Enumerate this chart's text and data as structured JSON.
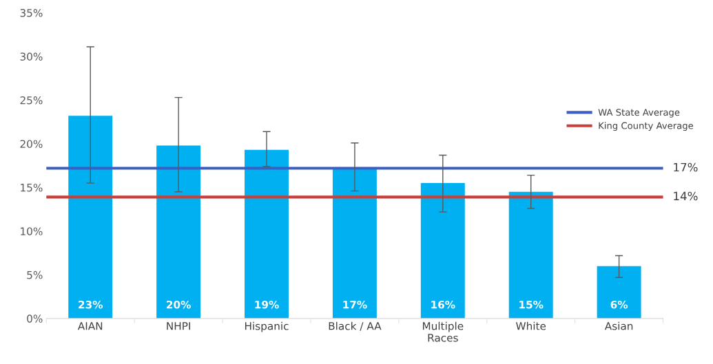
{
  "chart_data": {
    "type": "bar",
    "categories": [
      "AIAN",
      "NHPI",
      "Hispanic",
      "Black / AA",
      "Multiple\nRaces",
      "White",
      "Asian"
    ],
    "values": [
      23.2,
      19.8,
      19.3,
      17.2,
      15.5,
      14.5,
      6.0
    ],
    "color": "#00b0f0",
    "errors": [
      [
        15.5,
        31.1
      ],
      [
        14.5,
        25.3
      ],
      [
        17.4,
        21.4
      ],
      [
        14.6,
        20.1
      ],
      [
        12.2,
        18.7
      ],
      [
        12.6,
        16.4
      ],
      [
        4.7,
        7.2
      ]
    ],
    "value_labels": [
      "23%",
      "20%",
      "19%",
      "17%",
      "16%",
      "15%",
      "6%"
    ],
    "ylim": [
      0,
      35
    ],
    "yticks": [
      {
        "value": 0,
        "label": "0%"
      },
      {
        "value": 5,
        "label": "5%"
      },
      {
        "value": 10,
        "label": "10%"
      },
      {
        "value": 15,
        "label": "15%"
      },
      {
        "value": 20,
        "label": "20%"
      },
      {
        "value": 25,
        "label": "25%"
      },
      {
        "value": 30,
        "label": "30%"
      },
      {
        "value": 35,
        "label": "35%"
      }
    ],
    "ref_lines": [
      {
        "axis": "y",
        "value": 17.2,
        "label": "WA State Average",
        "color": "#3d5fc4"
      },
      {
        "axis": "y",
        "value": 13.9,
        "label": "King County Average",
        "color": "#c9403b"
      }
    ],
    "annotations": [
      "17%",
      "14%"
    ],
    "grid": false,
    "legend": "right"
  }
}
